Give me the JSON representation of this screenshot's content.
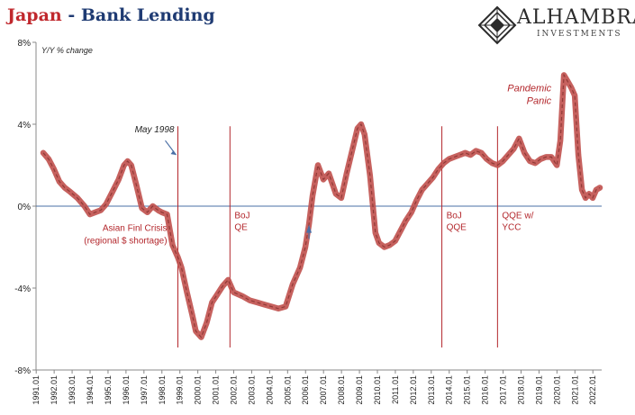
{
  "header": {
    "title_part1": "Japan",
    "separator": " - ",
    "title_part2": "Bank Lending"
  },
  "logo": {
    "name": "ALHAMBRA",
    "subtitle": "INVESTMENTS"
  },
  "colors": {
    "series": "#c0504d",
    "series_dark": "#7a2a27",
    "zero_line": "#4a6fa5",
    "event_line": "#b3272c",
    "title_red": "#c0282d",
    "title_blue": "#1f3b73"
  },
  "chart_data": {
    "type": "line",
    "ylabel": "Y/Y % change",
    "ylim": [
      -8,
      8
    ],
    "y_ticks": [
      "8%",
      "4%",
      "0%",
      "-4%",
      "-8%"
    ],
    "xlim": [
      1991.0,
      2022.5
    ],
    "x_ticks": [
      "1991.01",
      "1992.01",
      "1993.01",
      "1994.01",
      "1995.01",
      "1996.01",
      "1997.01",
      "1998.01",
      "1999.01",
      "2000.01",
      "2001.01",
      "2002.01",
      "2003.01",
      "2004.01",
      "2005.01",
      "2006.01",
      "2007.01",
      "2008.01",
      "2009.01",
      "2010.01",
      "2011.01",
      "2012.01",
      "2013.01",
      "2014.01",
      "2015.01",
      "2016.01",
      "2017.01",
      "2018.01",
      "2019.01",
      "2020.01",
      "2021.01",
      "2022.01"
    ],
    "series": [
      {
        "x": [
          1991.4,
          1991.7,
          1992.0,
          1992.3,
          1992.6,
          1992.9,
          1993.3,
          1993.7,
          1994.0,
          1994.3,
          1994.6,
          1994.9,
          1995.2,
          1995.6,
          1995.9,
          1996.1,
          1996.3,
          1996.6,
          1996.9,
          1997.2,
          1997.5,
          1997.8,
          1998.0,
          1998.3,
          1998.6,
          1998.9,
          1999.1,
          1999.4,
          1999.7,
          1999.9,
          2000.2,
          2000.5,
          2000.8,
          2001.1,
          2001.4,
          2001.7,
          2002.0,
          2002.5,
          2002.9,
          2003.3,
          2003.7,
          2004.1,
          2004.5,
          2004.9,
          2005.3,
          2005.7,
          2006.0,
          2006.2,
          2006.4,
          2006.7,
          2007.0,
          2007.3,
          2007.7,
          2008.0,
          2008.3,
          2008.6,
          2008.9,
          2009.1,
          2009.3,
          2009.6,
          2009.9,
          2010.1,
          2010.4,
          2010.7,
          2011.0,
          2011.3,
          2011.6,
          2011.9,
          2012.2,
          2012.5,
          2012.8,
          2013.1,
          2013.4,
          2013.7,
          2014.0,
          2014.3,
          2014.6,
          2014.9,
          2015.2,
          2015.5,
          2015.8,
          2016.1,
          2016.4,
          2016.7,
          2017.0,
          2017.3,
          2017.6,
          2017.9,
          2018.2,
          2018.5,
          2018.8,
          2019.1,
          2019.4,
          2019.7,
          2020.0,
          2020.2,
          2020.4,
          2020.6,
          2020.8,
          2021.0,
          2021.2,
          2021.4,
          2021.6,
          2021.8,
          2022.0,
          2022.2,
          2022.4
        ],
        "y": [
          2.6,
          2.3,
          1.8,
          1.2,
          0.9,
          0.7,
          0.4,
          0.0,
          -0.4,
          -0.3,
          -0.2,
          0.1,
          0.6,
          1.3,
          2.0,
          2.2,
          2.0,
          1.0,
          -0.1,
          -0.3,
          0.0,
          -0.2,
          -0.3,
          -0.4,
          -1.9,
          -2.5,
          -3.0,
          -4.2,
          -5.3,
          -6.1,
          -6.4,
          -5.7,
          -4.7,
          -4.3,
          -3.9,
          -3.6,
          -4.2,
          -4.4,
          -4.6,
          -4.7,
          -4.8,
          -4.9,
          -5.0,
          -4.9,
          -3.8,
          -3.0,
          -2.0,
          -0.9,
          0.5,
          2.0,
          1.3,
          1.6,
          0.6,
          0.4,
          1.6,
          2.7,
          3.8,
          4.0,
          3.5,
          1.5,
          -1.3,
          -1.8,
          -2.0,
          -1.9,
          -1.7,
          -1.2,
          -0.7,
          -0.3,
          0.3,
          0.8,
          1.1,
          1.4,
          1.8,
          2.1,
          2.3,
          2.4,
          2.5,
          2.6,
          2.5,
          2.7,
          2.6,
          2.3,
          2.1,
          2.0,
          2.2,
          2.5,
          2.8,
          3.3,
          2.6,
          2.2,
          2.1,
          2.3,
          2.4,
          2.4,
          2.0,
          3.2,
          6.4,
          6.1,
          5.8,
          5.4,
          2.5,
          0.8,
          0.4,
          0.6,
          0.4,
          0.8,
          0.9
        ]
      }
    ],
    "event_lines": [
      {
        "x": 1998.9,
        "label": ""
      },
      {
        "x": 2001.8,
        "label": "BoJ\nQE"
      },
      {
        "x": 2013.6,
        "label": "BoJ\nQQE"
      },
      {
        "x": 2016.7,
        "label": "QQE w/\nYCC"
      }
    ],
    "annotations": {
      "may1998": "May 1998",
      "asian_crisis": "Asian Finl Crisis\n(regional $ shortage)",
      "pandemic": "Pandemic\nPanic"
    }
  }
}
